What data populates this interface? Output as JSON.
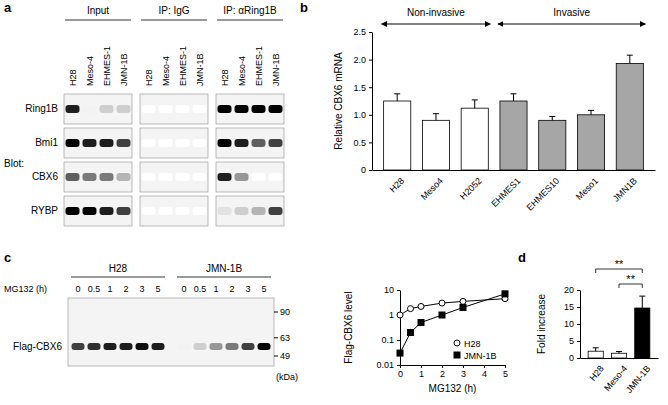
{
  "panel_labels": [
    "a",
    "b",
    "c",
    "d"
  ],
  "blots": [
    {
      "groups": [
        {
          "label": "Input"
        },
        {
          "label": "IP: IgG"
        },
        {
          "label": "IP: αRing1B"
        }
      ],
      "lanes": [
        "H28",
        "Meso-4",
        "EHMES-1",
        "JMN-1B"
      ],
      "side_label": "Blot:",
      "rows": [
        {
          "label": "Ring1B",
          "intensity": [
            0.9,
            0.1,
            0.3,
            0.3,
            0,
            0,
            0,
            0,
            1,
            1,
            1,
            1
          ]
        },
        {
          "label": "Bmi1",
          "intensity": [
            1,
            0.9,
            0.9,
            0.8,
            0,
            0,
            0,
            0,
            1,
            0.9,
            0.7,
            0.8
          ]
        },
        {
          "label": "CBX6",
          "intensity": [
            0.7,
            0.6,
            0.6,
            0.4,
            0,
            0,
            0,
            0,
            0.9,
            0.5,
            0,
            0
          ]
        },
        {
          "label": "RYBP",
          "intensity": [
            1,
            1,
            0.9,
            0.8,
            0,
            0,
            0,
            0,
            0.2,
            0.3,
            0.4,
            0.8
          ]
        }
      ]
    },
    {
      "groups": [
        {
          "label": "H28"
        },
        {
          "label": "JMN-1B"
        }
      ],
      "lane_title": "MG132 (h)",
      "lanes": [
        0,
        0.5,
        1,
        2,
        3,
        5
      ],
      "row_label": "Flag-CBX6",
      "intensity": [
        0.8,
        0.85,
        0.9,
        0.9,
        0.95,
        0.9,
        0.1,
        0.3,
        0.5,
        0.6,
        0.8,
        1
      ],
      "markers": [
        90,
        63,
        49
      ],
      "marker_unit": "(kDa)"
    }
  ],
  "chart_data": [
    {
      "type": "bar",
      "y_label": "Relative CBX6 mRNA",
      "categories": [
        "H28",
        "Meso4",
        "H2052",
        "EHMES1",
        "EHMES10",
        "Meso1",
        "JMN1B"
      ],
      "values": [
        1.25,
        0.9,
        1.12,
        1.25,
        0.9,
        1.0,
        1.93
      ],
      "errors": [
        0.13,
        0.12,
        0.15,
        0.13,
        0.07,
        0.08,
        0.15
      ],
      "colors": [
        "#ffffff",
        "#ffffff",
        "#ffffff",
        "#a6a6a6",
        "#a6a6a6",
        "#a6a6a6",
        "#a6a6a6"
      ],
      "ylim": [
        0,
        2.5
      ],
      "yticks": [
        0,
        0.5,
        {
          "value": 1,
          "label": "1.0"
        },
        1.5,
        {
          "value": 2,
          "label": "2.0"
        },
        2.5
      ],
      "groups": [
        {
          "label": "Non-invasive",
          "categories": [
            "H28",
            "Meso4",
            "H2052"
          ]
        },
        {
          "label": "Invasive",
          "categories": [
            "EHMES1",
            "EHMES10",
            "Meso1",
            "JMN1B"
          ]
        }
      ]
    },
    {
      "type": "line",
      "x_label": "MG132 (h)",
      "y_label": "Flag-CBX6 level",
      "x": [
        0,
        0.5,
        1,
        2,
        3,
        5
      ],
      "series": [
        {
          "name": "H28",
          "color": "#000000",
          "marker": "open-circle",
          "values": [
            1,
            1.8,
            2.2,
            3,
            3.5,
            4.5
          ]
        },
        {
          "name": "JMN-1B",
          "color": "#000000",
          "marker": "filled-square",
          "values": [
            0.03,
            0.2,
            0.5,
            1,
            2,
            7
          ]
        }
      ],
      "log": "y",
      "xlim": [
        0,
        5
      ],
      "xticks": [
        0,
        1,
        2,
        3,
        4,
        5
      ],
      "ylim": [
        0.01,
        10
      ],
      "yticks": [
        0.01,
        0.1,
        1,
        10
      ],
      "legend": "lower right"
    },
    {
      "type": "bar",
      "y_label": "Fold increase",
      "categories": [
        "H28",
        "Meso-4",
        "JMN-1B"
      ],
      "values": [
        2,
        1.4,
        14.7
      ],
      "errors": [
        1,
        0.5,
        3.5
      ],
      "colors": [
        "#ffffff",
        "#ffffff",
        "#000000"
      ],
      "ylim": [
        0,
        20
      ],
      "yticks": [
        0,
        5,
        10,
        15,
        20
      ],
      "significance": [
        {
          "pair": [
            "H28",
            "JMN-1B"
          ],
          "label": "**"
        },
        {
          "pair": [
            "Meso-4",
            "JMN-1B"
          ],
          "label": "**"
        }
      ]
    }
  ]
}
